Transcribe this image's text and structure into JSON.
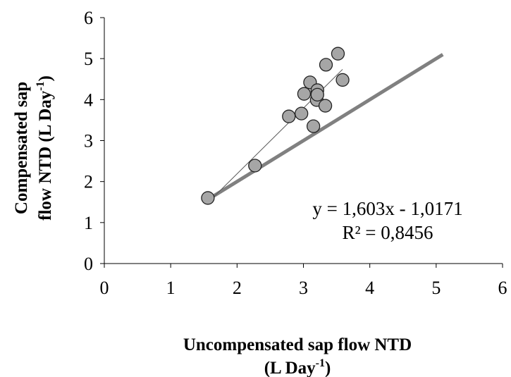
{
  "chart_data": {
    "type": "scatter",
    "xlabel": {
      "text": "Uncompensated sap flow NTD",
      "unit": "(L Day",
      "sup": "-1",
      "close": ")"
    },
    "ylabel": {
      "text": "Compensated sap",
      "unit": "flow NTD (L Day",
      "sup": "-1",
      "close": ")"
    },
    "x": [
      1.56,
      2.27,
      2.78,
      2.97,
      3.01,
      3.1,
      3.15,
      3.2,
      3.21,
      3.21,
      3.33,
      3.34,
      3.52,
      3.59
    ],
    "values": [
      1.6,
      2.39,
      3.59,
      3.66,
      4.14,
      4.42,
      3.35,
      3.99,
      4.23,
      4.12,
      3.85,
      4.85,
      5.12,
      4.48
    ],
    "color": "#a6a6a6",
    "reference_line": {
      "x": [
        1.6,
        5.1
      ],
      "values": [
        1.6,
        5.1
      ],
      "color": "#808080"
    },
    "trendline": {
      "slope": 1.603,
      "intercept": -1.0171,
      "label": "y = 1,603x - 1,0171",
      "r2_label": "R² = 0,8456",
      "color": "#555555"
    },
    "xlim": [
      0,
      6
    ],
    "ylim": [
      0,
      6
    ],
    "xticks": [
      0,
      1,
      2,
      3,
      4,
      5,
      6
    ],
    "yticks": [
      0,
      1,
      2,
      3,
      4,
      5,
      6
    ],
    "grid": false
  }
}
